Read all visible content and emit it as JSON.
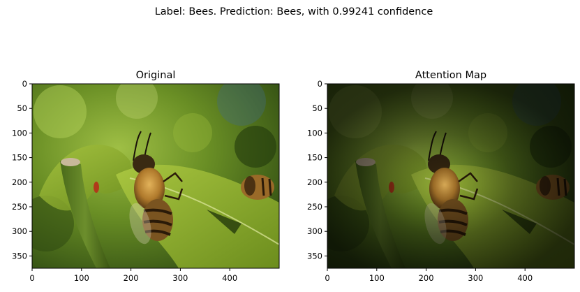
{
  "suptitle": "Label: Bees. Prediction: Bees, with 0.99241 confidence",
  "chart_data": [
    {
      "type": "image",
      "title": "Original",
      "xlim": [
        0,
        500
      ],
      "ylim": [
        375,
        0
      ],
      "xticks": [
        0,
        100,
        200,
        300,
        400
      ],
      "yticks": [
        0,
        50,
        100,
        150,
        200,
        250,
        300,
        350
      ],
      "image_description": "Photo of a honeybee climbing a green leaf, with a second bee at right edge"
    },
    {
      "type": "image",
      "title": "Attention Map",
      "xlim": [
        0,
        500
      ],
      "ylim": [
        375,
        0
      ],
      "xticks": [
        0,
        100,
        200,
        300,
        400
      ],
      "yticks": [
        0,
        50,
        100,
        150,
        200,
        250,
        300,
        350
      ],
      "image_description": "Same photo darkened, with the central bee highlighted"
    }
  ]
}
